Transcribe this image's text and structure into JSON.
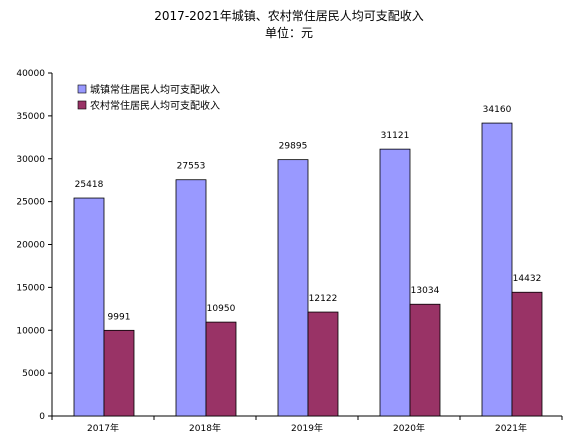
{
  "chart_data": {
    "type": "bar",
    "title": "2017-2021年城镇、农村常住居民人均可支配收入",
    "subtitle": "单位：元",
    "categories": [
      "2017年",
      "2018年",
      "2019年",
      "2020年",
      "2021年"
    ],
    "series": [
      {
        "name": "城镇常住居民人均可支配收入",
        "values": [
          25418,
          27553,
          29895,
          31121,
          34160
        ],
        "color": "#9999ff"
      },
      {
        "name": "农村常住居民人均可支配收入",
        "values": [
          9991,
          10950,
          12122,
          13034,
          14432
        ],
        "color": "#993366"
      }
    ],
    "ylim": [
      0,
      40000
    ],
    "ytick_step": 5000,
    "yticks": [
      "0",
      "5000",
      "10000",
      "15000",
      "20000",
      "25000",
      "30000",
      "35000",
      "40000"
    ],
    "grid": false,
    "legend": "top-left"
  }
}
